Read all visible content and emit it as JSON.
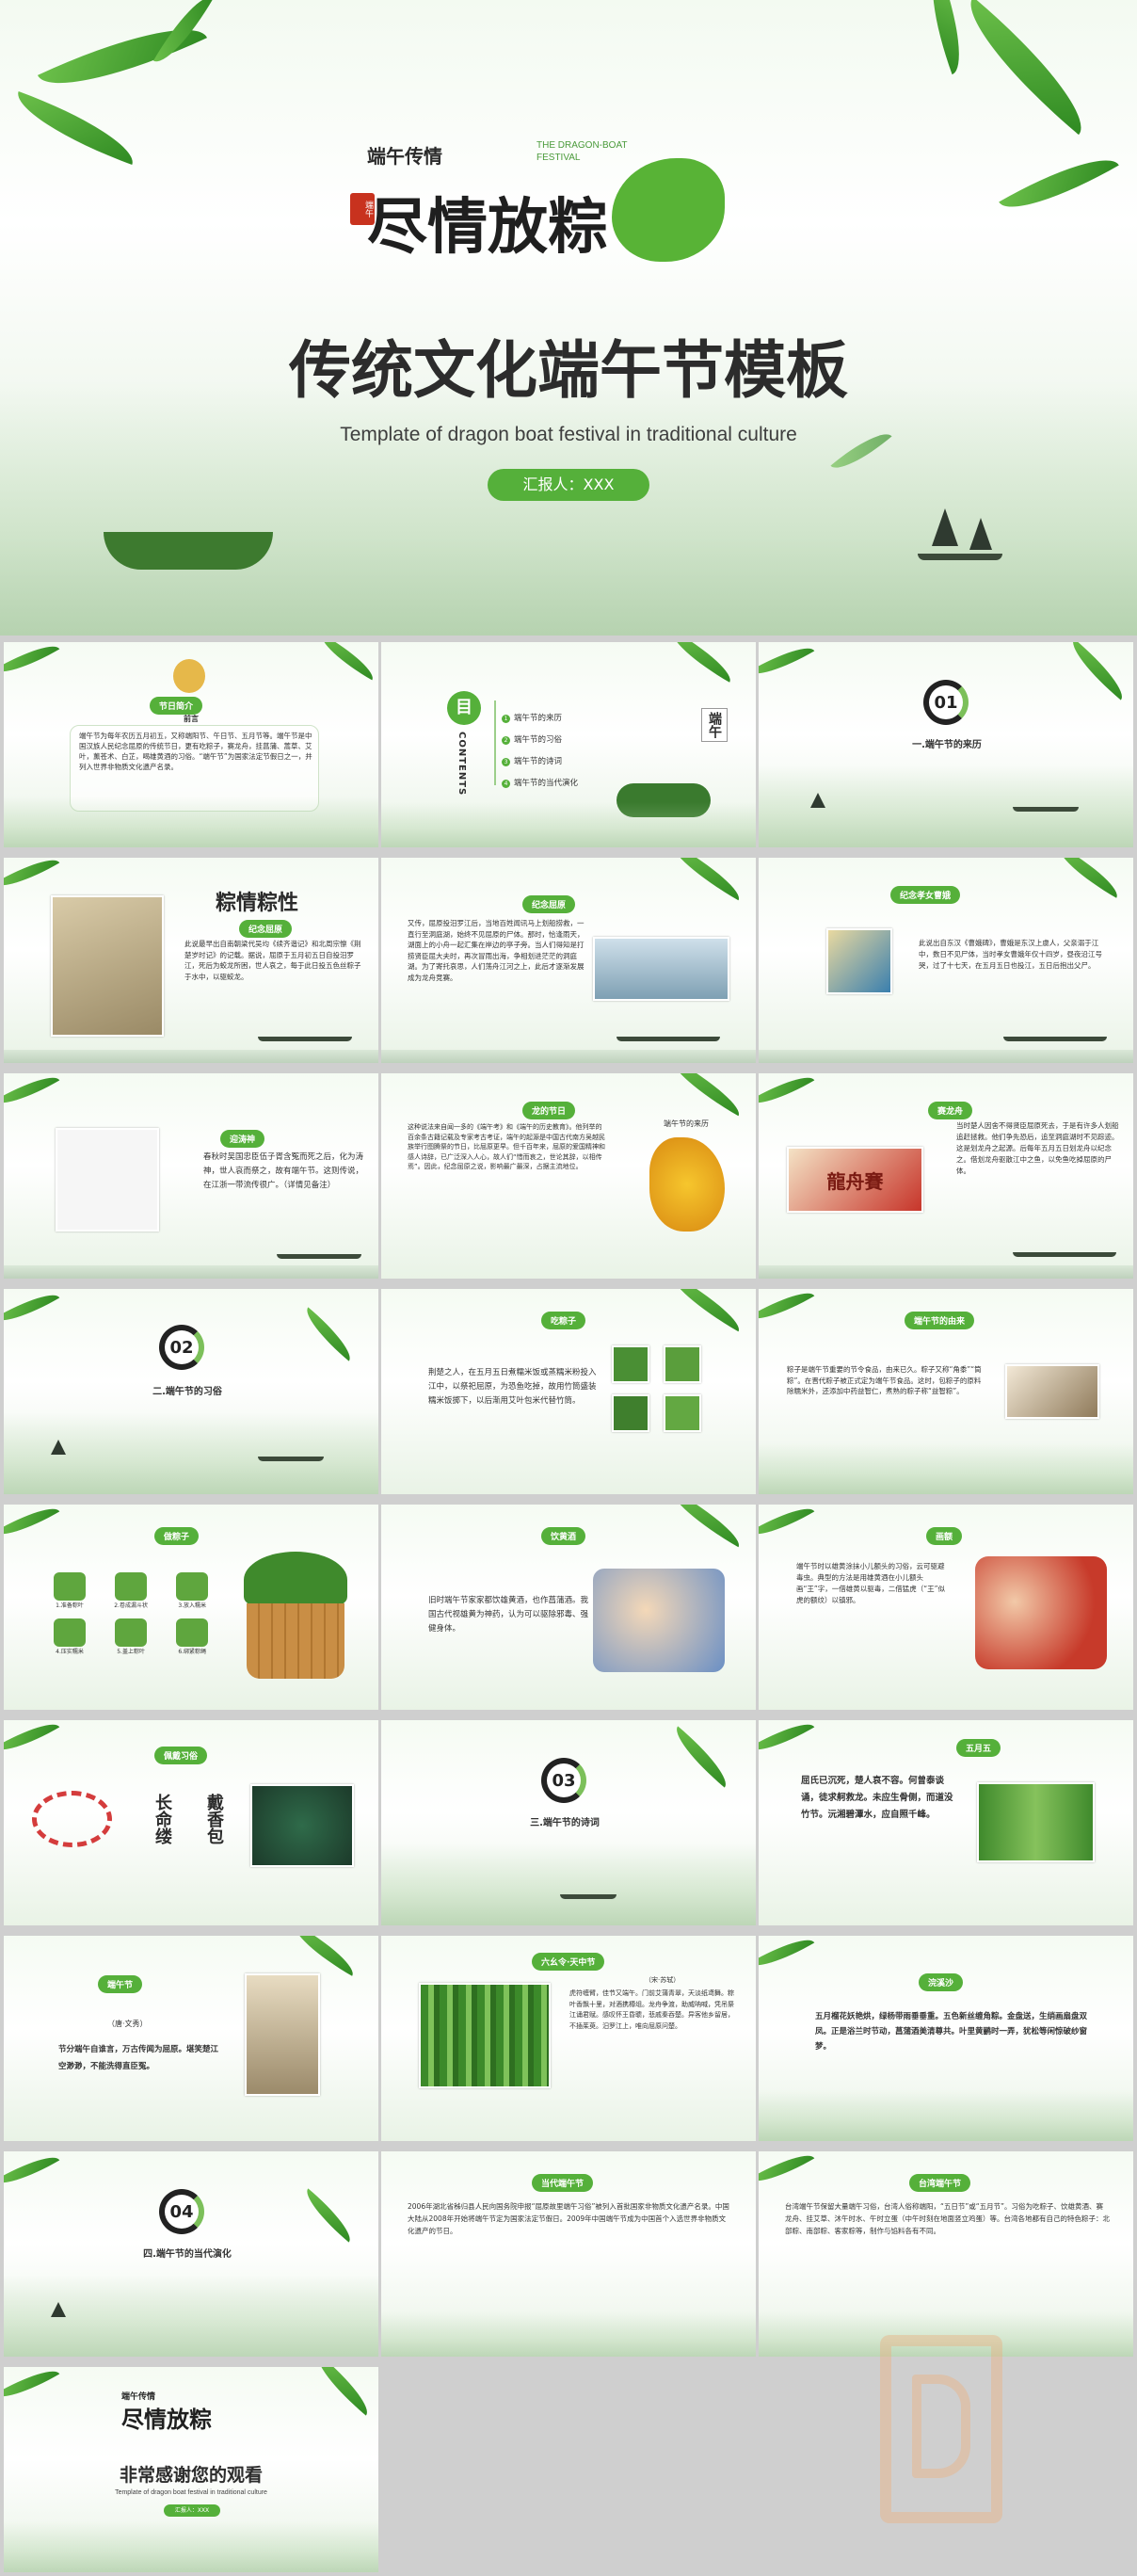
{
  "cover": {
    "logo_small": "端午传情",
    "logo_en": "THE DRAGON-BOAT FESTIVAL",
    "logo_big": "尽情放粽",
    "seal": "端午",
    "title": "传统文化端午节模板",
    "subtitle": "Template of dragon boat festival in traditional culture",
    "reporter": "汇报人：XXX"
  },
  "slides": {
    "s1": {
      "badge": "节日简介",
      "sub": "前言",
      "text": "端午节为每年农历五月初五，又称端阳节、午日节、五月节等。端午节是中国汉族人民纪念屈原的传统节日，更有吃粽子，赛龙舟，挂菖蒲、蒿草、艾叶，薰苍术、白芷，喝雄黄酒的习俗。“端午节”为国家法定节假日之一，并列入世界非物质文化遗产名录。"
    },
    "s2": {
      "mu": "目",
      "contents": "CONTENTS",
      "items": [
        "端午节的来历",
        "端午节的习俗",
        "端午节的诗词",
        "端午节的当代演化"
      ],
      "seal": "端午"
    },
    "s3": {
      "num": "01",
      "title": "一.端午节的来历"
    },
    "s4": {
      "deco": "粽情粽性",
      "badge": "纪念屈原",
      "text": "此说最早出自南朝梁代吴均《续齐谐记》和北周宗懔《荆楚岁时记》的记载。据说，屈原于五月初五日自投汨罗江，死后为蛟龙所困，世人哀之，每于此日投五色丝粽子于水中，以驱蛟龙。"
    },
    "s5": {
      "badge": "纪念屈原",
      "text": "又传，屈原投汨罗江后，当地百姓闻讯马上划船捞救，一直行至洞庭湖，始终不见屈原的尸体。那时，恰逢雨天，湖面上的小舟一起汇集在岸边的亭子旁。当人们得知是打捞贤臣屈大夫时，再次冒雨出海，争相划进茫茫的洞庭湖。为了寄托哀思，人们荡舟江河之上，此后才逐渐发展成为龙舟竞赛。"
    },
    "s6": {
      "badge": "纪念孝女曹娥",
      "text": "此说出自东汉《曹娥碑》，曹娥是东汉上虞人，父亲溺于江中，数日不见尸体，当时孝女曹娥年仅十四岁，昼夜沿江号哭，过了十七天，在五月五日也投江，五日后抱出父尸。"
    },
    "s7": {
      "badge": "迎涛神",
      "text": "春秋时吴国忠臣伍子胥含冤而死之后，化为涛神，世人哀而祭之，故有端午节。这则传说，在江浙一带流传很广。（详情见备注）"
    },
    "s8": {
      "badge": "龙的节日",
      "text": "这种说法来自闻一多的《端午考》和《端午的历史教育》。他列举的百余条古籍记载及专家考古考证，端午的起源是中国古代南方吴越民族举行图腾祭的节日，比屈原更早。但千百年来，屈原的爱国精神和感人诗辞，已广泛深入人心，故人们“惜而哀之，世论其辞，以相传焉”。因此，纪念屈原之说，影响最广最深，占据主流地位。",
      "side": "端午节的来历"
    },
    "s9": {
      "badge": "赛龙舟",
      "text": "当时楚人因舍不得贤臣屈原死去，于是有许多人划船追赶拯救。他们争先恐后，追至洞庭湖时不见踪迹。这是划龙舟之起源。后每年五月五日划龙舟以纪念之。借划龙舟驱散江中之鱼，以免鱼吃掉屈原的尸体。",
      "sign": "龍舟賽"
    },
    "s10": {
      "num": "02",
      "title": "二.端午节的习俗"
    },
    "s11": {
      "badge": "吃粽子",
      "text": "荆楚之人，在五月五日煮糯米饭或蒸糯米粉投入江中，以祭祀屈原，为恐鱼吃掉，故用竹筒盛装糯米饭掷下，以后渐用艾叶包米代替竹筒。"
    },
    "s12": {
      "badge": "端午节的由来",
      "text": "粽子是端午节重要的节令食品，由来已久。粽子又称“角黍”“筒粽”。在晋代粽子被正式定为端午节食品。这时，包粽子的原料除糯米外，还添加中药益智仁，煮熟的粽子称“益智粽”。"
    },
    "s13": {
      "badge": "做粽子",
      "steps": [
        "1.准备粽叶",
        "2.卷成漏斗状",
        "3.放入糯米",
        "4.压实糯米",
        "5.盖上粽叶",
        "6.绑紧粽绳"
      ]
    },
    "s14": {
      "badge": "饮黄酒",
      "text": "旧时端午节家家都饮雄黄酒，也作菖蒲酒。我国古代视雄黄为神药，认为可以驱除邪毒、强健身体。"
    },
    "s15": {
      "badge": "画额",
      "text": "端午节时以雄黄涂抹小儿额头的习俗，云可驱避毒虫。典型的方法是用雄黄酒在小儿额头画“王”字，一借雄黄以驱毒，二借猛虎（“王”似虎的额纹）以镇邪。"
    },
    "s16": {
      "badge": "佩戴习俗",
      "a": "长命缕",
      "b": "戴香包"
    },
    "s17": {
      "num": "03",
      "title": "三.端午节的诗词"
    },
    "s18": {
      "badge": "五月五",
      "poem": "屈氏已沉死，楚人哀不容。何曾泰谈诵，徒求舸救龙。未应生骨侧，而道没竹节。沅湘碧潭水，应自照千峰。"
    },
    "s19": {
      "badge": "端午节",
      "author": "（唐·文秀）",
      "poem": "节分端午自谁言，万古传闻为屈原。堪笑楚江空渺渺，不能洗得直臣冤。"
    },
    "s20": {
      "badge": "六幺令·天中节",
      "author": "（宋·苏轼）",
      "poem": "虎符缠臂，佳节又端午。门前艾蒲青翠，天淡纸鸢舞。粽叶香飘十里，对酒携樽俎。龙舟争渡，助威呐喊，凭吊祭江诵君赋。感叹怀王昏聩，悲戚秦吞楚。异客他乡留居，不插茱萸。汨罗江上，唯向屈原问楚。"
    },
    "s21": {
      "badge": "浣溪沙",
      "text": "五月榴花妖艳烘，绿杨带雨垂垂重。五色新丝缠角粽。金盘送，生绡画扇盘双凤。正是浴兰时节动，菖蒲酒美清尊共。叶里黄鹂时一弄，犹松等闲惊破纱窗梦。"
    },
    "s22": {
      "num": "04",
      "title": "四.端午节的当代演化"
    },
    "s23": {
      "badge": "当代端午节",
      "text": "2006年湖北省秭归县人民向国务院申报“屈原故里端午习俗”被列入首批国家非物质文化遗产名录。中国大陆从2008年开始将端午节定为国家法定节假日。2009年中国端午节成为中国首个入选世界非物质文化遗产的节日。"
    },
    "s24": {
      "badge": "台湾端午节",
      "text": "台湾端午节保留大量端午习俗，台湾人俗称端阳，“五日节”或“五月节”。习俗为吃粽子、饮雄黄酒、赛龙舟、挂艾草、沐午时水、午时立蛋（中午时刻在地面竖立鸡蛋）等。台湾各地都有自己的特色粽子：北部粽、南部粽、客家粽等，制作与馅料各有不同。"
    },
    "s25": {
      "logo_small": "端午传情",
      "logo_big": "尽情放粽",
      "title": "非常感谢您的观看",
      "subtitle": "Template of dragon boat festival in traditional culture",
      "reporter": "汇报人：XXX"
    }
  },
  "colors": {
    "accent": "#55b03a",
    "dark": "#2c2c2c",
    "leaf": "#4d9b3a"
  }
}
